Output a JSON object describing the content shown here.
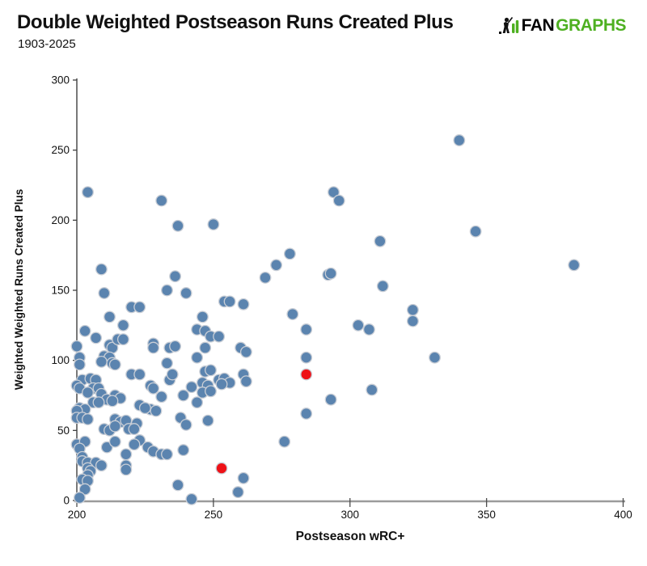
{
  "header": {
    "title": "Double Weighted Postseason Runs Created Plus",
    "subtitle": "1903-2025"
  },
  "logo": {
    "fan": "FAN",
    "graphs": "GRAPHS",
    "icon": "batter-with-bars-icon",
    "green": "#4eb021"
  },
  "chart_data": {
    "type": "scatter",
    "title": "Double Weighted Postseason Runs Created Plus",
    "subtitle": "1903-2025",
    "xlabel": "Postseason wRC+",
    "ylabel": "Weighted Weighted Runs Created Plus",
    "xlim": [
      200,
      400
    ],
    "ylim": [
      0,
      300
    ],
    "x_ticks": [
      200,
      250,
      300,
      350,
      400
    ],
    "y_ticks": [
      0,
      50,
      100,
      150,
      200,
      250,
      300
    ],
    "grid": false,
    "legend": "none",
    "point_color": "#5b84af",
    "highlight_color": "#ee1117",
    "point_stroke": "#c9ced6",
    "series": [
      {
        "name": "players",
        "color": "#5b84af",
        "points": [
          [
            204,
            220
          ],
          [
            231,
            214
          ],
          [
            294,
            220
          ],
          [
            296,
            214
          ],
          [
            340,
            257
          ],
          [
            237,
            196
          ],
          [
            250,
            197
          ],
          [
            311,
            185
          ],
          [
            346,
            192
          ],
          [
            382,
            168
          ],
          [
            278,
            176
          ],
          [
            273,
            168
          ],
          [
            269,
            159
          ],
          [
            292,
            161
          ],
          [
            293,
            162
          ],
          [
            312,
            153
          ],
          [
            279,
            133
          ],
          [
            284,
            122
          ],
          [
            303,
            125
          ],
          [
            307,
            122
          ],
          [
            323,
            136
          ],
          [
            323,
            128
          ],
          [
            284,
            102
          ],
          [
            331,
            102
          ],
          [
            209,
            165
          ],
          [
            210,
            148
          ],
          [
            233,
            150
          ],
          [
            240,
            148
          ],
          [
            236,
            160
          ],
          [
            254,
            142
          ],
          [
            256,
            142
          ],
          [
            261,
            140
          ],
          [
            220,
            138
          ],
          [
            223,
            138
          ],
          [
            212,
            131
          ],
          [
            217,
            125
          ],
          [
            203,
            121
          ],
          [
            246,
            131
          ],
          [
            244,
            122
          ],
          [
            247,
            121
          ],
          [
            249,
            117
          ],
          [
            252,
            117
          ],
          [
            200,
            110
          ],
          [
            207,
            116
          ],
          [
            212,
            111
          ],
          [
            213,
            109
          ],
          [
            215,
            115
          ],
          [
            217,
            115
          ],
          [
            228,
            112
          ],
          [
            210,
            103
          ],
          [
            212,
            102
          ],
          [
            209,
            99
          ],
          [
            213,
            98
          ],
          [
            214,
            97
          ],
          [
            201,
            102
          ],
          [
            201,
            97
          ],
          [
            228,
            109
          ],
          [
            234,
            109
          ],
          [
            236,
            110
          ],
          [
            233,
            98
          ],
          [
            244,
            102
          ],
          [
            247,
            109
          ],
          [
            260,
            109
          ],
          [
            262,
            106
          ],
          [
            261,
            90
          ],
          [
            262,
            85
          ],
          [
            247,
            92
          ],
          [
            249,
            93
          ],
          [
            252,
            86
          ],
          [
            254,
            87
          ],
          [
            256,
            84
          ],
          [
            253,
            83
          ],
          [
            246,
            84
          ],
          [
            248,
            82
          ],
          [
            246,
            77
          ],
          [
            249,
            78
          ],
          [
            239,
            75
          ],
          [
            242,
            81
          ],
          [
            234,
            86
          ],
          [
            235,
            90
          ],
          [
            227,
            82
          ],
          [
            228,
            80
          ],
          [
            231,
            74
          ],
          [
            220,
            90
          ],
          [
            223,
            90
          ],
          [
            202,
            86
          ],
          [
            205,
            87
          ],
          [
            207,
            86
          ],
          [
            206,
            80
          ],
          [
            208,
            80
          ],
          [
            200,
            82
          ],
          [
            201,
            80
          ],
          [
            204,
            77
          ],
          [
            209,
            76
          ],
          [
            214,
            75
          ],
          [
            216,
            73
          ],
          [
            211,
            72
          ],
          [
            213,
            71
          ],
          [
            244,
            70
          ],
          [
            206,
            70
          ],
          [
            208,
            70
          ],
          [
            201,
            66
          ],
          [
            203,
            65
          ],
          [
            200,
            64
          ],
          [
            227,
            65
          ],
          [
            229,
            64
          ],
          [
            223,
            68
          ],
          [
            225,
            66
          ],
          [
            200,
            59
          ],
          [
            202,
            59
          ],
          [
            204,
            58
          ],
          [
            214,
            58
          ],
          [
            216,
            56
          ],
          [
            218,
            57
          ],
          [
            222,
            55
          ],
          [
            238,
            59
          ],
          [
            248,
            57
          ],
          [
            240,
            54
          ],
          [
            210,
            51
          ],
          [
            212,
            50
          ],
          [
            219,
            51
          ],
          [
            221,
            51
          ],
          [
            214,
            53
          ],
          [
            218,
            33
          ],
          [
            223,
            43
          ],
          [
            221,
            40
          ],
          [
            226,
            38
          ],
          [
            228,
            35
          ],
          [
            231,
            33
          ],
          [
            233,
            33
          ],
          [
            239,
            36
          ],
          [
            211,
            38
          ],
          [
            214,
            42
          ],
          [
            200,
            40
          ],
          [
            203,
            42
          ],
          [
            201,
            37
          ],
          [
            202,
            31
          ],
          [
            202,
            28
          ],
          [
            204,
            27
          ],
          [
            207,
            27
          ],
          [
            209,
            25
          ],
          [
            218,
            25
          ],
          [
            218,
            22
          ],
          [
            204,
            23
          ],
          [
            205,
            21
          ],
          [
            204,
            18
          ],
          [
            202,
            15
          ],
          [
            204,
            14
          ],
          [
            203,
            8
          ],
          [
            201,
            2
          ],
          [
            237,
            11
          ],
          [
            242,
            1
          ],
          [
            261,
            16
          ],
          [
            259,
            6
          ],
          [
            284,
            62
          ],
          [
            276,
            42
          ],
          [
            293,
            72
          ],
          [
            308,
            79
          ]
        ]
      },
      {
        "name": "highlighted",
        "color": "#ee1117",
        "points": [
          [
            253,
            23
          ],
          [
            284,
            90
          ]
        ]
      }
    ]
  }
}
